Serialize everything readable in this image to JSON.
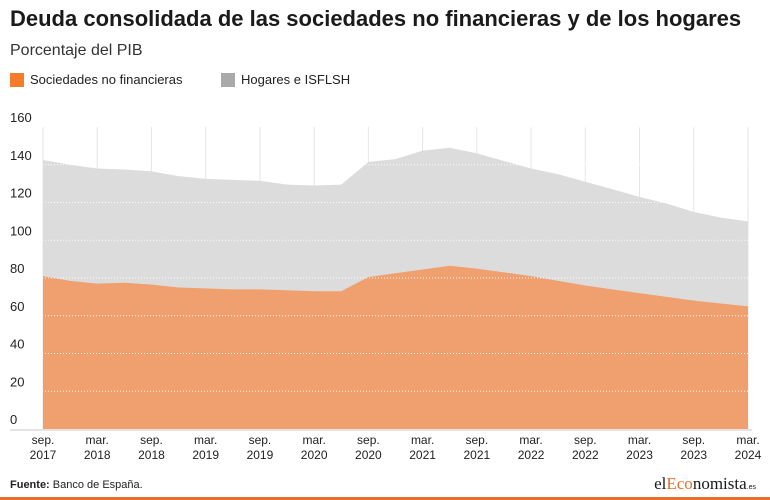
{
  "header": {
    "title": "Deuda consolidada de las sociedades no financieras y de los hogares",
    "subtitle": "Porcentaje del PIB"
  },
  "legend": [
    {
      "label": "Sociedades no financieras",
      "color": "#f47c2b"
    },
    {
      "label": "Hogares e ISFLSH",
      "color": "#a9a9a9"
    }
  ],
  "footer": {
    "source_label": "Fuente:",
    "source_text": "Banco de España.",
    "brand_prefix": "el",
    "brand_accent": "Eco",
    "brand_suffix": "nomista",
    "brand_tld": ".es"
  },
  "chart_data": {
    "type": "area",
    "stacked": true,
    "ylim": [
      0,
      160
    ],
    "yticks": [
      0,
      20,
      40,
      60,
      80,
      100,
      120,
      140,
      160
    ],
    "x": [
      "sep. 2017",
      "dic. 2017",
      "mar. 2018",
      "jun. 2018",
      "sep. 2018",
      "dic. 2018",
      "mar. 2019",
      "jun. 2019",
      "sep. 2019",
      "dic. 2019",
      "mar. 2020",
      "jun. 2020",
      "sep. 2020",
      "dic. 2020",
      "mar. 2021",
      "jun. 2021",
      "sep. 2021",
      "dic. 2021",
      "mar. 2022",
      "jun. 2022",
      "sep. 2022",
      "dic. 2022",
      "mar. 2023",
      "jun. 2023",
      "sep. 2023",
      "dic. 2023",
      "mar. 2024"
    ],
    "xtick_labels": [
      [
        "sep.",
        "2017"
      ],
      [
        "mar.",
        "2018"
      ],
      [
        "sep.",
        "2018"
      ],
      [
        "mar.",
        "2019"
      ],
      [
        "sep.",
        "2019"
      ],
      [
        "mar.",
        "2020"
      ],
      [
        "sep.",
        "2020"
      ],
      [
        "mar.",
        "2021"
      ],
      [
        "sep.",
        "2021"
      ],
      [
        "mar.",
        "2022"
      ],
      [
        "sep.",
        "2022"
      ],
      [
        "mar.",
        "2023"
      ],
      [
        "sep.",
        "2023"
      ],
      [
        "mar.",
        "2024"
      ]
    ],
    "series": [
      {
        "name": "Sociedades no financieras",
        "color": "#f0a06e",
        "values": [
          81,
          78.5,
          77,
          77.5,
          76.5,
          75,
          74.5,
          74,
          74,
          73.5,
          73,
          73,
          80.5,
          82.5,
          84.5,
          86.5,
          85,
          83,
          81,
          78.5,
          76,
          74,
          72,
          70,
          68,
          66.5,
          65
        ]
      },
      {
        "name": "Hogares e ISFLSH",
        "color": "#dcdcdc",
        "values": [
          61.5,
          61.5,
          61,
          60,
          60,
          59,
          58,
          58,
          57.5,
          56,
          56,
          56.5,
          61,
          60.5,
          63,
          62.5,
          61,
          59,
          57,
          56.5,
          55,
          53,
          51,
          49.5,
          47,
          45.5,
          45
        ]
      }
    ]
  }
}
